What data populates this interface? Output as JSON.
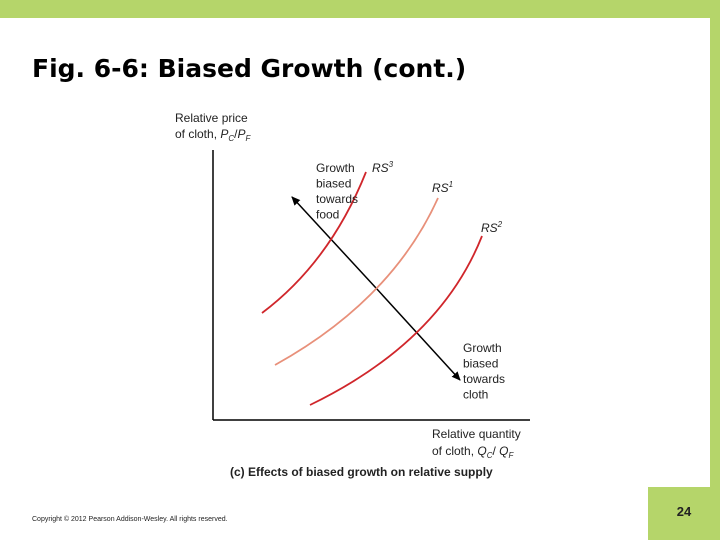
{
  "header": {
    "title": "Fig. 6-6: Biased Growth (cont.)"
  },
  "figure": {
    "y_axis_label": {
      "line1": "Relative price",
      "line2": "of cloth, ",
      "var1": "P",
      "sub1": "C",
      "sep": "/",
      "var2": "P",
      "sub2": "F"
    },
    "x_axis_label": {
      "line1": "Relative quantity",
      "line2": "of cloth, ",
      "var1": "Q",
      "sub1": "C",
      "sep": "/ ",
      "var2": "Q",
      "sub2": "F"
    },
    "curves": [
      {
        "name": "RS",
        "sup": "3",
        "color": "#d0262b"
      },
      {
        "name": "RS",
        "sup": "1",
        "color": "#e8907a"
      },
      {
        "name": "RS",
        "sup": "2",
        "color": "#d0262b"
      }
    ],
    "arrow_labels": [
      [
        "Growth",
        "biased",
        "towards",
        "food"
      ],
      [
        "Growth",
        "biased",
        "towards",
        "cloth"
      ]
    ],
    "caption": "(c) Effects of biased growth on relative supply"
  },
  "footer": {
    "copyright": "Copyright © 2012 Pearson Addison-Wesley. All rights reserved.",
    "page": "24"
  }
}
